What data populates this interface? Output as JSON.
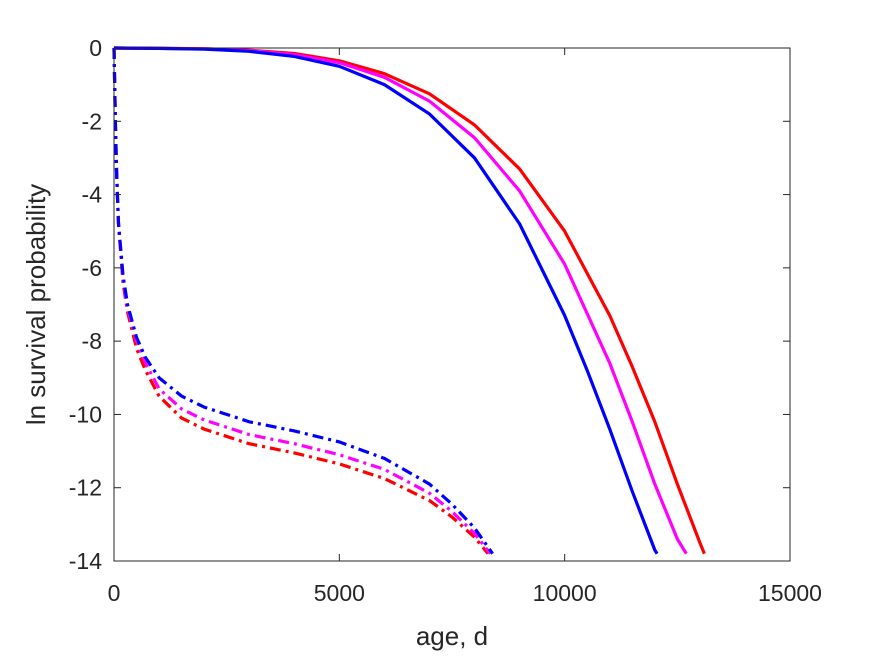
{
  "chart_data": {
    "type": "line",
    "title": "",
    "xlabel": "age, d",
    "ylabel": "ln survival probability",
    "xlim": [
      0,
      15000
    ],
    "ylim": [
      -14,
      0
    ],
    "xticks": [
      0,
      5000,
      10000,
      15000
    ],
    "yticks": [
      0,
      -2,
      -4,
      -6,
      -8,
      -10,
      -12,
      -14
    ],
    "grid": false,
    "legend": "none",
    "series": [
      {
        "color": "#ff0000",
        "style": "solid",
        "x": [
          0,
          1000,
          2000,
          3000,
          4000,
          5000,
          6000,
          7000,
          8000,
          9000,
          10000,
          11000,
          11500,
          12000,
          12500,
          13000,
          13100
        ],
        "y": [
          0,
          -0.01,
          -0.02,
          -0.06,
          -0.15,
          -0.35,
          -0.7,
          -1.25,
          -2.1,
          -3.3,
          -5.0,
          -7.3,
          -8.7,
          -10.2,
          -11.9,
          -13.5,
          -13.8
        ]
      },
      {
        "color": "#ff00ff",
        "style": "solid",
        "x": [
          0,
          1000,
          2000,
          3000,
          4000,
          5000,
          6000,
          7000,
          8000,
          9000,
          10000,
          11000,
          11500,
          12000,
          12500,
          12700
        ],
        "y": [
          0,
          -0.01,
          -0.02,
          -0.07,
          -0.18,
          -0.4,
          -0.8,
          -1.45,
          -2.45,
          -3.9,
          -5.9,
          -8.6,
          -10.2,
          -11.9,
          -13.4,
          -13.8
        ]
      },
      {
        "color": "#0000ff",
        "style": "solid",
        "x": [
          0,
          1000,
          2000,
          3000,
          4000,
          5000,
          6000,
          7000,
          8000,
          9000,
          10000,
          10500,
          11000,
          11500,
          12000,
          12050
        ],
        "y": [
          0,
          -0.01,
          -0.03,
          -0.09,
          -0.23,
          -0.5,
          -1.0,
          -1.8,
          -3.0,
          -4.8,
          -7.3,
          -8.8,
          -10.4,
          -12.1,
          -13.7,
          -13.8
        ]
      },
      {
        "color": "#ff0000",
        "style": "dashdot",
        "x": [
          0,
          30,
          60,
          100,
          200,
          300,
          500,
          700,
          1000,
          1500,
          2000,
          3000,
          4000,
          5000,
          6000,
          7000,
          7500,
          8000,
          8300
        ],
        "y": [
          0,
          -2.0,
          -3.5,
          -4.8,
          -6.4,
          -7.2,
          -8.2,
          -8.8,
          -9.5,
          -10.1,
          -10.4,
          -10.8,
          -11.05,
          -11.35,
          -11.75,
          -12.35,
          -12.8,
          -13.35,
          -13.8
        ]
      },
      {
        "color": "#ff00ff",
        "style": "dashdot",
        "x": [
          0,
          30,
          60,
          100,
          200,
          300,
          500,
          700,
          1000,
          1500,
          2000,
          3000,
          4000,
          5000,
          6000,
          7000,
          7500,
          8000,
          8350
        ],
        "y": [
          0,
          -2.0,
          -3.5,
          -4.8,
          -6.3,
          -7.1,
          -8.0,
          -8.6,
          -9.3,
          -9.85,
          -10.15,
          -10.55,
          -10.8,
          -11.1,
          -11.5,
          -12.15,
          -12.65,
          -13.25,
          -13.8
        ]
      },
      {
        "color": "#0000ff",
        "style": "dashdot",
        "x": [
          0,
          30,
          60,
          100,
          200,
          300,
          500,
          700,
          1000,
          1500,
          2000,
          3000,
          4000,
          5000,
          6000,
          7000,
          7500,
          8000,
          8400
        ],
        "y": [
          0,
          -2.0,
          -3.5,
          -4.8,
          -6.2,
          -7.0,
          -7.9,
          -8.45,
          -9.0,
          -9.5,
          -9.8,
          -10.2,
          -10.45,
          -10.75,
          -11.2,
          -11.9,
          -12.45,
          -13.1,
          -13.8
        ]
      }
    ]
  }
}
